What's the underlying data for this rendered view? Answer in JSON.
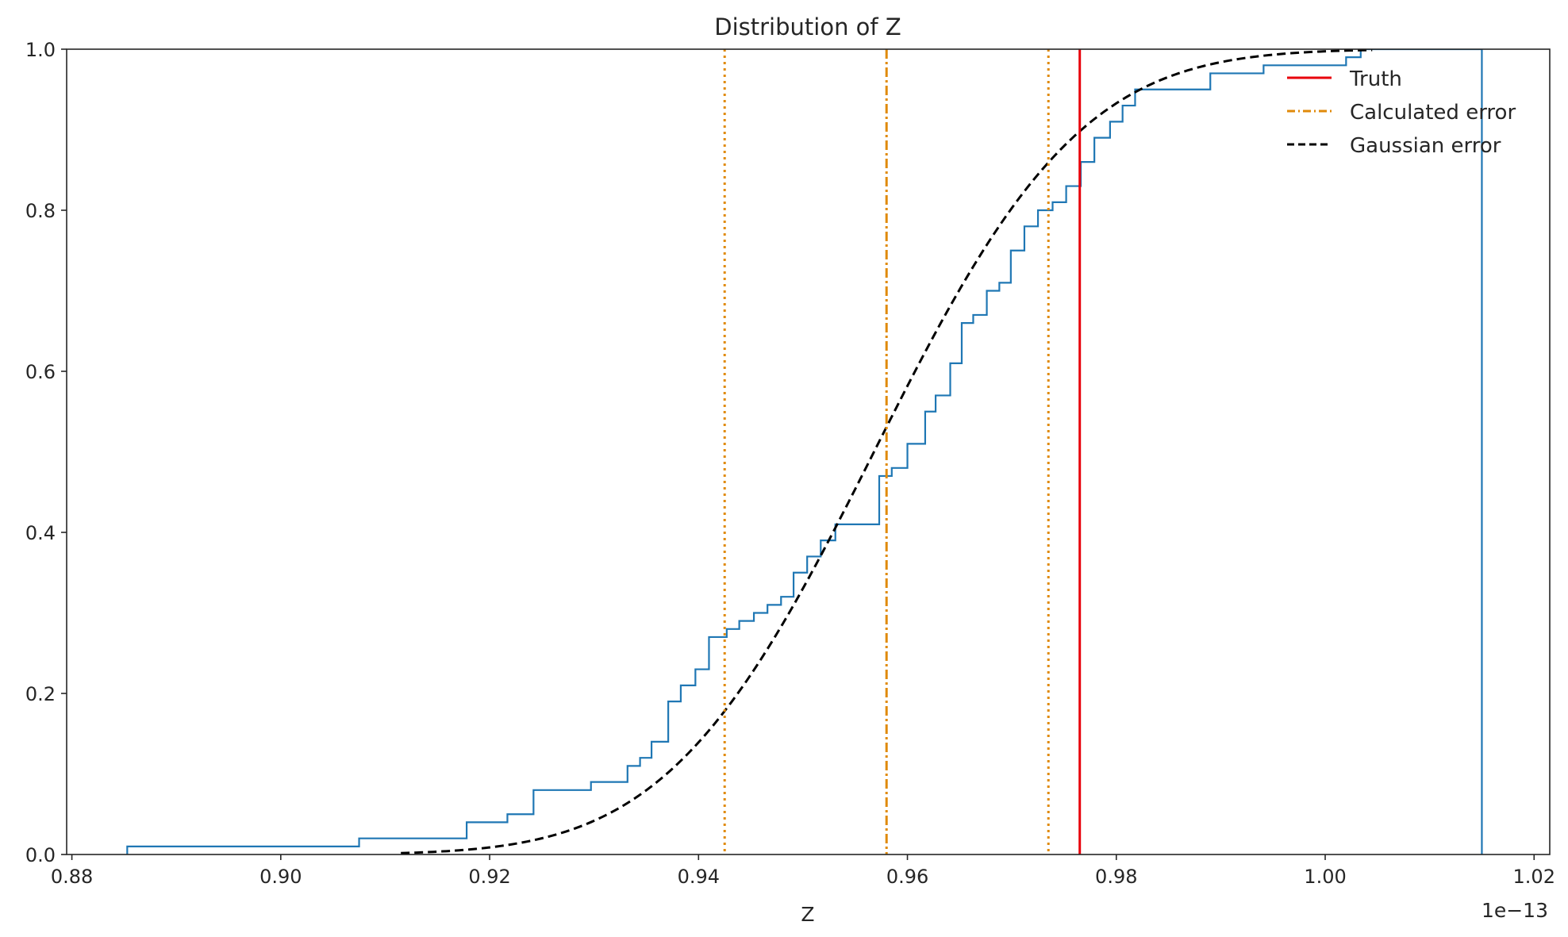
{
  "chart_data": {
    "type": "line",
    "title": "Distribution of Z",
    "xlabel": "Z",
    "ylabel": "",
    "x_offset_label": "1e−13",
    "xlim": [
      0.8795,
      1.0215
    ],
    "ylim": [
      0,
      1
    ],
    "x_ticks": [
      0.88,
      0.9,
      0.92,
      0.94,
      0.96,
      0.98,
      1.0,
      1.02
    ],
    "x_tick_labels": [
      "0.88",
      "0.90",
      "0.92",
      "0.94",
      "0.96",
      "0.98",
      "1.00",
      "1.02"
    ],
    "y_ticks": [
      0.0,
      0.2,
      0.4,
      0.6,
      0.8,
      1.0
    ],
    "y_tick_labels": [
      "0.0",
      "0.2",
      "0.4",
      "0.6",
      "0.8",
      "1.0"
    ],
    "grid": false,
    "legend_position": "top-right",
    "colors": {
      "empirical": "#1f77b4",
      "truth": "#e8000b",
      "calculated": "#e08a0a",
      "gaussian": "#000000"
    },
    "empirical_cdf": {
      "x": [
        0.8853,
        0.9075,
        0.9178,
        0.9217,
        0.9242,
        0.9297,
        0.9332,
        0.9344,
        0.9355,
        0.9371,
        0.9383,
        0.9397,
        0.941,
        0.9427,
        0.9439,
        0.9453,
        0.9466,
        0.9479,
        0.9491,
        0.9504,
        0.9517,
        0.9531,
        0.9573,
        0.9585,
        0.96,
        0.9617,
        0.9627,
        0.9641,
        0.9652,
        0.9663,
        0.9676,
        0.9688,
        0.9699,
        0.9712,
        0.9725,
        0.9739,
        0.9752,
        0.9766,
        0.9779,
        0.9794,
        0.9806,
        0.9818,
        0.989,
        0.9941,
        1.002,
        1.0034,
        1.0139,
        1.015
      ],
      "y": [
        0.01,
        0.02,
        0.04,
        0.05,
        0.08,
        0.09,
        0.11,
        0.12,
        0.14,
        0.19,
        0.21,
        0.23,
        0.27,
        0.28,
        0.29,
        0.3,
        0.31,
        0.32,
        0.35,
        0.37,
        0.39,
        0.41,
        0.47,
        0.48,
        0.51,
        0.55,
        0.57,
        0.61,
        0.66,
        0.67,
        0.7,
        0.71,
        0.75,
        0.78,
        0.8,
        0.81,
        0.83,
        0.86,
        0.89,
        0.91,
        0.93,
        0.95,
        0.97,
        0.98,
        0.99,
        1.0,
        1.0,
        1.0
      ]
    },
    "truth_x": 0.9765,
    "calculated_center_x": 0.958,
    "calculated_bounds_x": [
      0.9425,
      0.9735
    ],
    "gaussian": {
      "mean": 0.9568,
      "sigma": 0.0155,
      "x_range": [
        0.9115,
        1.0045
      ]
    },
    "legend": [
      "Truth",
      "Calculated error",
      "Gaussian error"
    ]
  }
}
